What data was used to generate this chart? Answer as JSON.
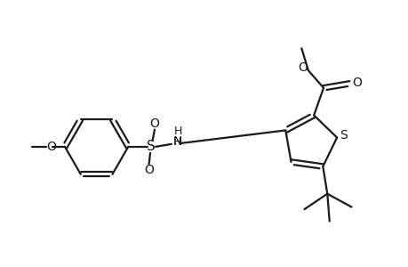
{
  "bg_color": "#ffffff",
  "line_color": "#1a1a1a",
  "lw": 1.6,
  "figsize": [
    4.6,
    3.0
  ],
  "dpi": 100,
  "xlim": [
    0.0,
    9.2
  ],
  "ylim": [
    0.5,
    6.5
  ]
}
